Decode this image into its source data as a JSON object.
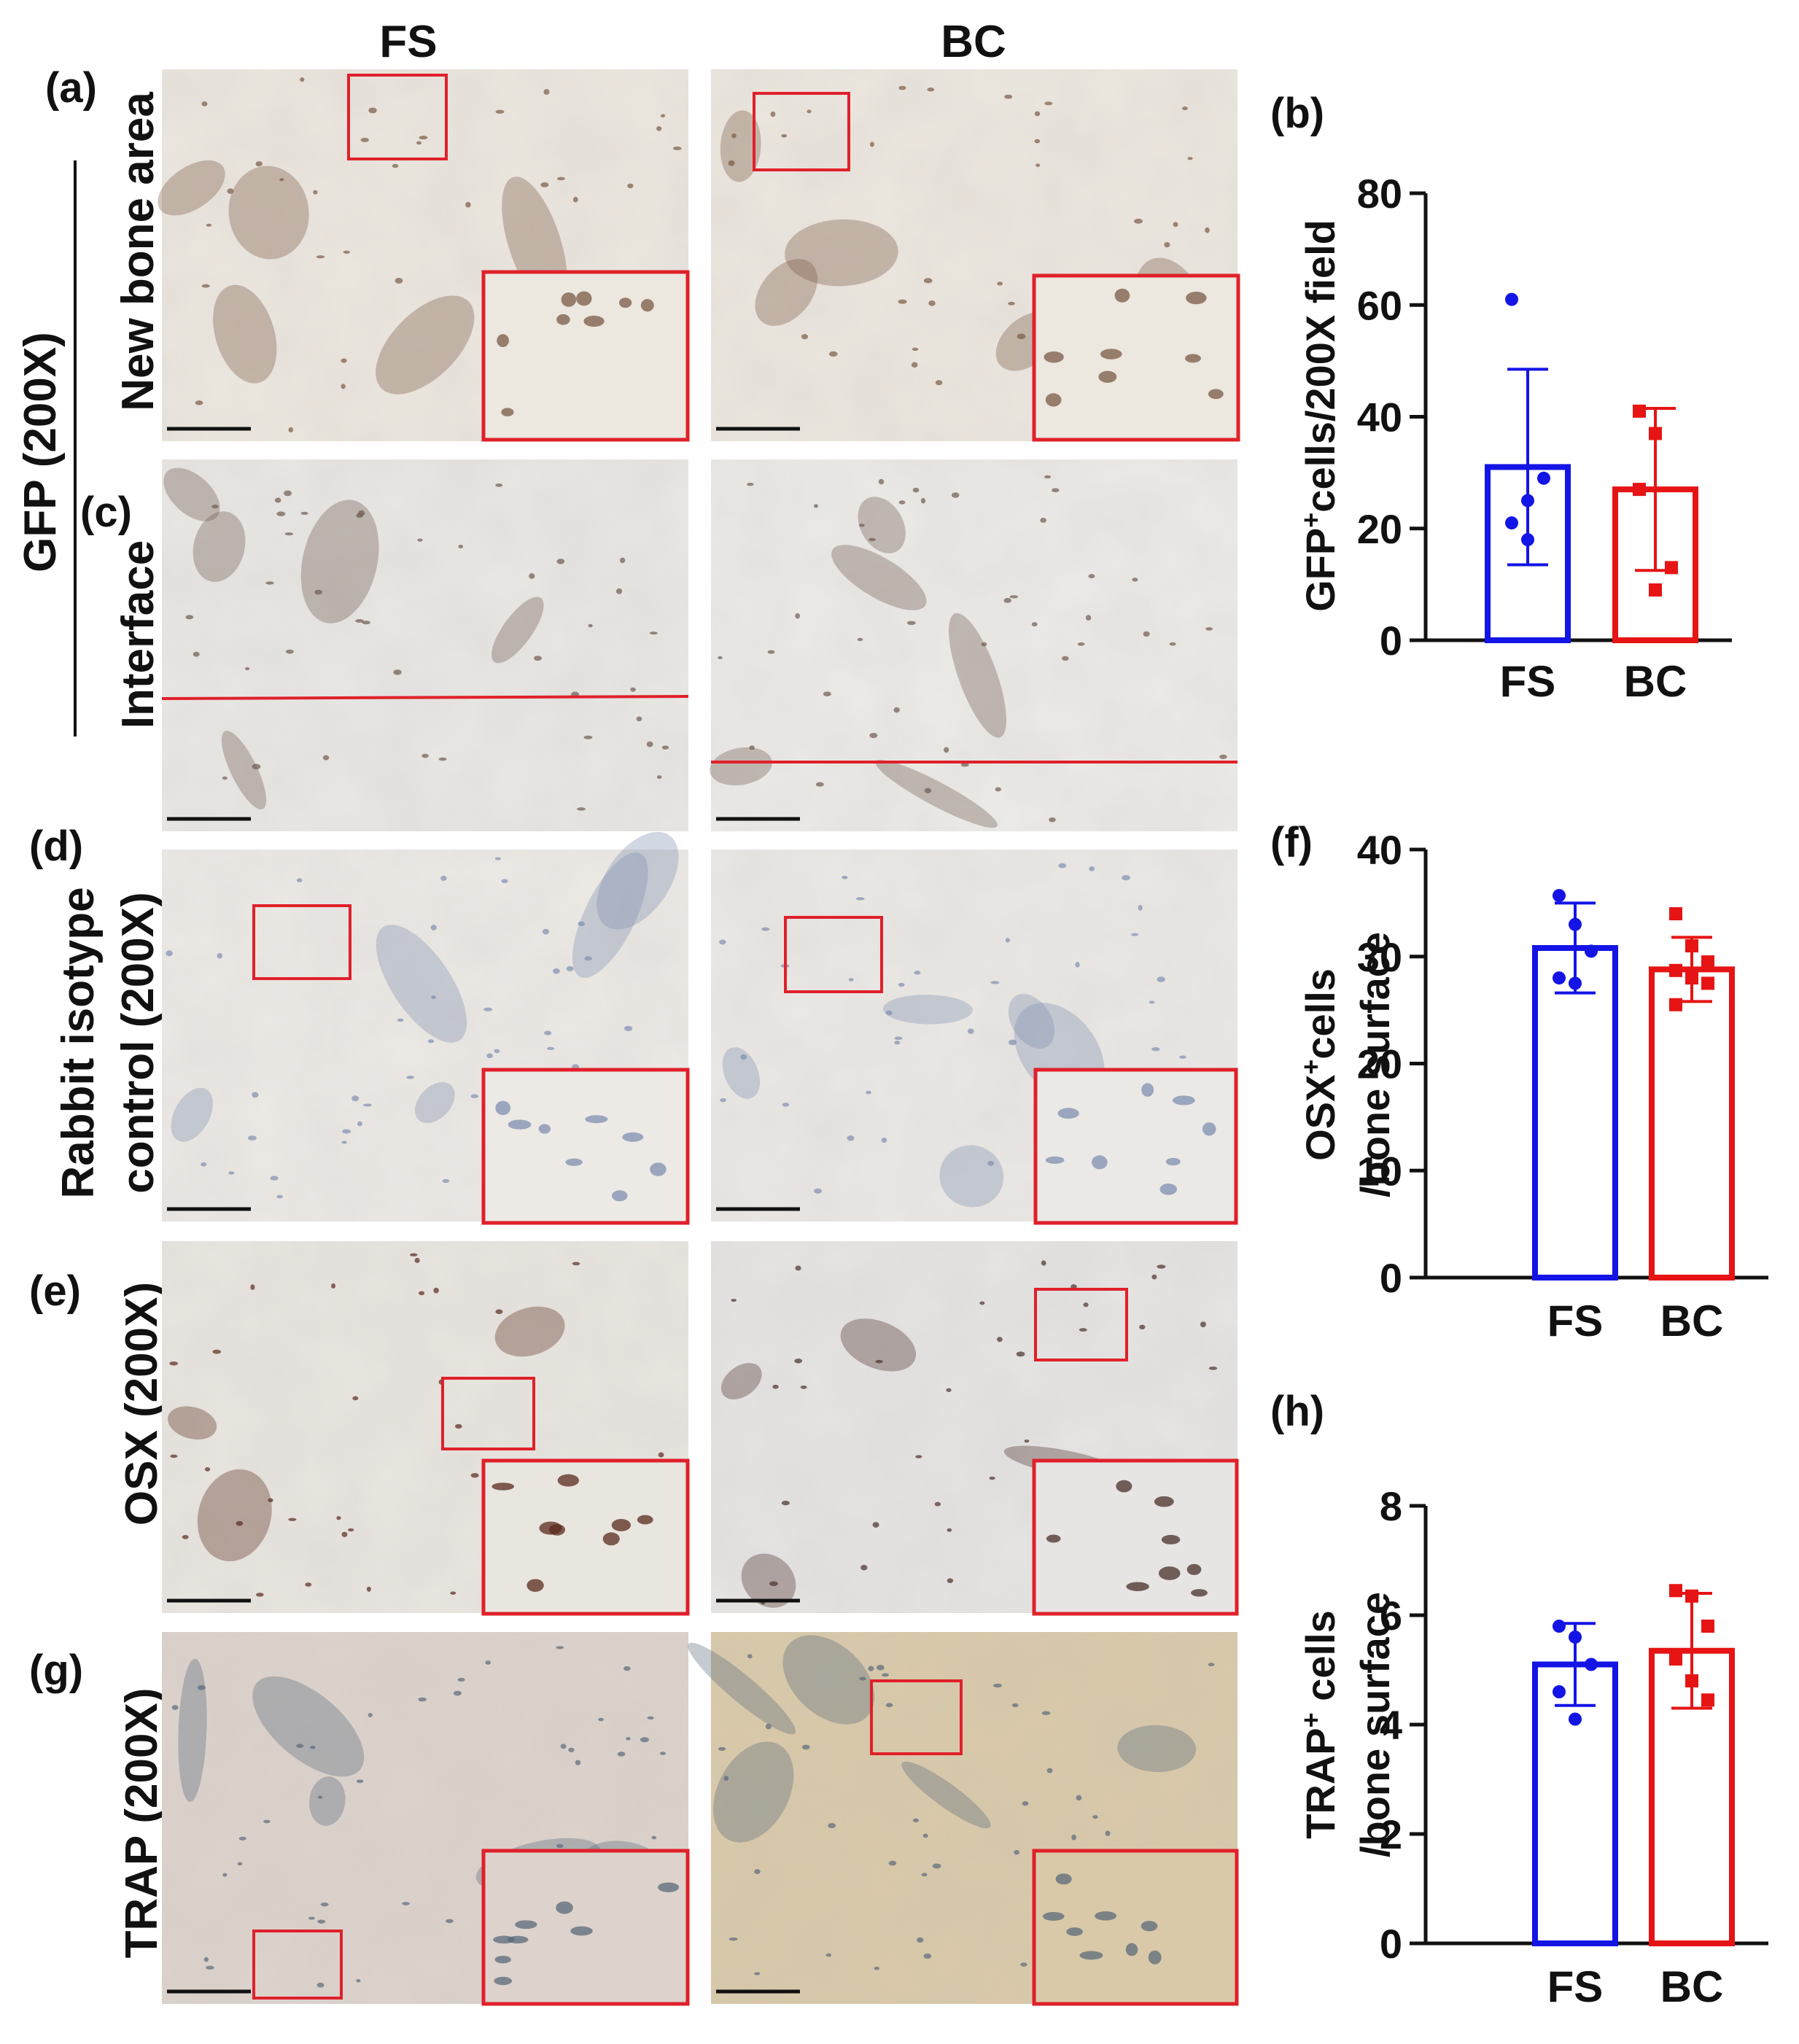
{
  "columns": [
    "FS",
    "BC"
  ],
  "panel_labels": {
    "a": "(a)",
    "b": "(b)",
    "c": "(c)",
    "d": "(d)",
    "e": "(e)",
    "f": "(f)",
    "g": "(g)",
    "h": "(h)"
  },
  "row_labels": {
    "gfp_group": "GFP (200X)",
    "new_bone": "New bone area",
    "interface": "Interface",
    "isotype_1": "Rabbit isotype",
    "isotype_2": "control (200X)",
    "osx": "OSX (200X)",
    "trap": "TRAP (200X)"
  },
  "colors": {
    "FS": "#1414e6",
    "BC": "#e61414",
    "box": "#e0202a"
  },
  "chart_data": [
    {
      "id": "b",
      "type": "bar",
      "categories": [
        "FS",
        "BC"
      ],
      "values": [
        31,
        27
      ],
      "error": [
        17.5,
        14.5
      ],
      "points": [
        [
          61,
          25,
          29,
          21,
          18
        ],
        [
          41,
          37,
          13,
          27,
          9
        ]
      ],
      "ylabel_main": "GFP",
      "ylabel_sup": "+",
      "ylabel_rest": "cells/200X field",
      "ylim": [
        0,
        80
      ],
      "yticks": [
        0,
        20,
        40,
        60,
        80
      ]
    },
    {
      "id": "f",
      "type": "bar",
      "categories": [
        "FS",
        "BC"
      ],
      "values": [
        30.8,
        28.8
      ],
      "error": [
        4.2,
        3
      ],
      "points": [
        [
          35.7,
          33,
          30.5,
          28,
          27.5
        ],
        [
          34,
          31,
          29.5,
          28.7,
          28,
          27.5,
          25.5
        ]
      ],
      "ylabel_main": "OSX",
      "ylabel_sup": "+",
      "ylabel_rest": "cells",
      "ylabel_line2": "/bone surface",
      "ylim": [
        0,
        40
      ],
      "yticks": [
        0,
        10,
        20,
        30,
        40
      ]
    },
    {
      "id": "h",
      "type": "bar",
      "categories": [
        "FS",
        "BC"
      ],
      "values": [
        5.1,
        5.35
      ],
      "error": [
        0.75,
        1.05
      ],
      "points": [
        [
          5.8,
          5.6,
          5.1,
          4.6,
          4.1
        ],
        [
          6.45,
          6.35,
          5.8,
          5.2,
          4.8,
          4.45
        ]
      ],
      "ylabel_main": "TRAP",
      "ylabel_sup": "+",
      "ylabel_rest": " cells",
      "ylabel_line2": "/bone surface",
      "ylim": [
        0,
        8
      ],
      "yticks": [
        0,
        2,
        4,
        6,
        8
      ]
    }
  ]
}
